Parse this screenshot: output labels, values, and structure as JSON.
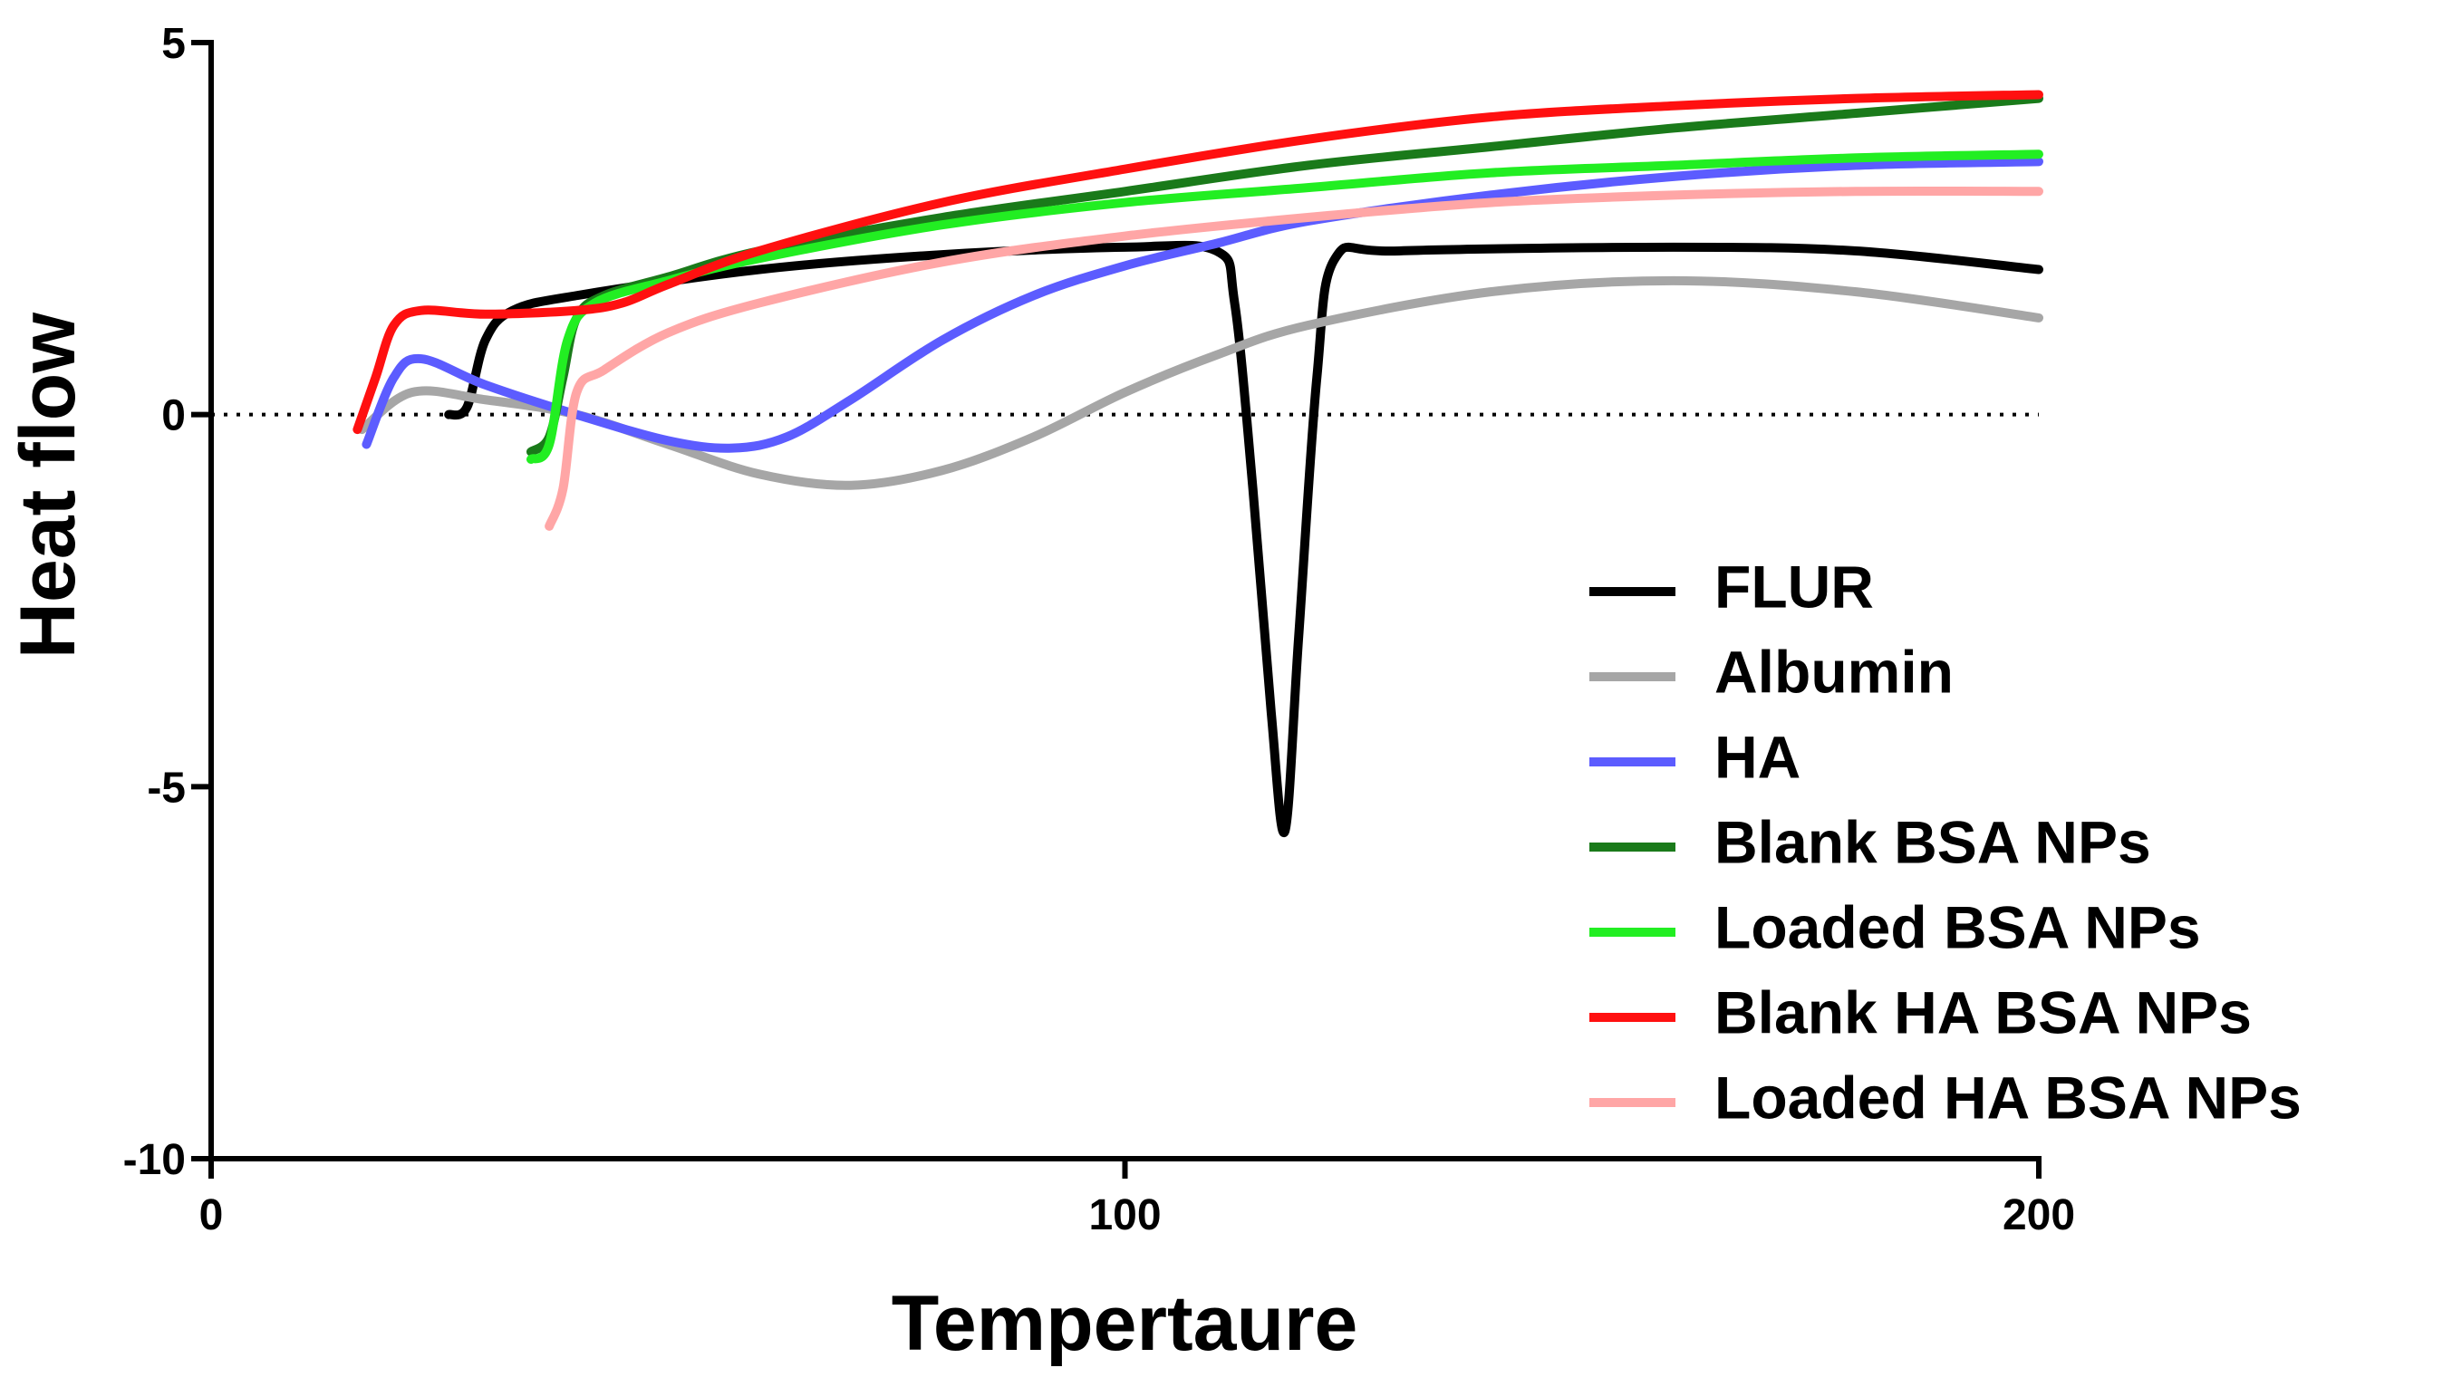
{
  "chart_data": {
    "type": "line",
    "xlabel": "Tempertaure",
    "ylabel": "Heat flow",
    "xlim": [
      0,
      200
    ],
    "xticks": [
      0,
      100,
      200
    ],
    "ylim": [
      -10,
      5
    ],
    "yticks": [
      -10,
      -5,
      0,
      5
    ],
    "reference_line": 0,
    "legend": "lower right",
    "series": [
      {
        "name": "FLUR",
        "color": "#000000",
        "x": [
          26,
          28,
          30,
          33,
          40,
          60,
          80,
          100,
          110,
          112,
          114,
          116,
          117.5,
          119,
          121,
          123,
          130,
          160,
          180,
          200
        ],
        "values": [
          0,
          0.1,
          1.0,
          1.4,
          1.6,
          1.95,
          2.15,
          2.25,
          2.2,
          1.5,
          -1,
          -4,
          -5.6,
          -3,
          0.5,
          2.1,
          2.2,
          2.25,
          2.2,
          1.95
        ]
      },
      {
        "name": "Albumin",
        "color": "#a6a6a6",
        "x": [
          16.5,
          22,
          30,
          40,
          50,
          60,
          70,
          80,
          90,
          100,
          110,
          120,
          140,
          160,
          180,
          200
        ],
        "values": [
          -0.2,
          0.3,
          0.2,
          0,
          -0.4,
          -0.8,
          -0.95,
          -0.75,
          -0.3,
          0.3,
          0.8,
          1.2,
          1.65,
          1.8,
          1.65,
          1.3
        ]
      },
      {
        "name": "HA",
        "color": "#5c5cff",
        "x": [
          17,
          20,
          23,
          30,
          40,
          50,
          57,
          63,
          70,
          80,
          90,
          100,
          110,
          120,
          140,
          160,
          180,
          200
        ],
        "values": [
          -0.4,
          0.5,
          0.75,
          0.4,
          0,
          -0.35,
          -0.45,
          -0.3,
          0.2,
          1.0,
          1.6,
          2.0,
          2.3,
          2.6,
          2.95,
          3.2,
          3.35,
          3.4
        ]
      },
      {
        "name": "Blank BSA NPs",
        "color": "#1a7a1a",
        "x": [
          35,
          37,
          38.5,
          40,
          43,
          50,
          60,
          80,
          100,
          120,
          140,
          160,
          180,
          200
        ],
        "values": [
          -0.5,
          -0.3,
          0.5,
          1.3,
          1.6,
          1.85,
          2.2,
          2.65,
          3.0,
          3.35,
          3.6,
          3.85,
          4.05,
          4.25
        ]
      },
      {
        "name": "Loaded BSA NPs",
        "color": "#22ee22",
        "x": [
          35,
          37,
          39,
          42,
          50,
          60,
          80,
          100,
          120,
          140,
          160,
          180,
          200
        ],
        "values": [
          -0.6,
          -0.4,
          1.0,
          1.5,
          1.8,
          2.1,
          2.55,
          2.85,
          3.05,
          3.25,
          3.35,
          3.45,
          3.5
        ]
      },
      {
        "name": "Blank HA BSA NPs",
        "color": "#ff1010",
        "x": [
          16,
          18,
          20,
          23,
          30,
          40,
          45,
          50,
          60,
          80,
          100,
          120,
          140,
          160,
          180,
          200
        ],
        "values": [
          -0.2,
          0.5,
          1.2,
          1.4,
          1.35,
          1.4,
          1.5,
          1.75,
          2.2,
          2.85,
          3.3,
          3.7,
          4.0,
          4.15,
          4.25,
          4.3
        ]
      },
      {
        "name": "Loaded HA BSA NPs",
        "color": "#ffa6a6",
        "x": [
          37,
          38.5,
          40,
          43,
          50,
          60,
          80,
          100,
          120,
          140,
          160,
          180,
          200
        ],
        "values": [
          -1.5,
          -1.0,
          0.3,
          0.6,
          1.1,
          1.5,
          2.05,
          2.4,
          2.65,
          2.85,
          2.95,
          3.0,
          3.0
        ]
      }
    ]
  }
}
